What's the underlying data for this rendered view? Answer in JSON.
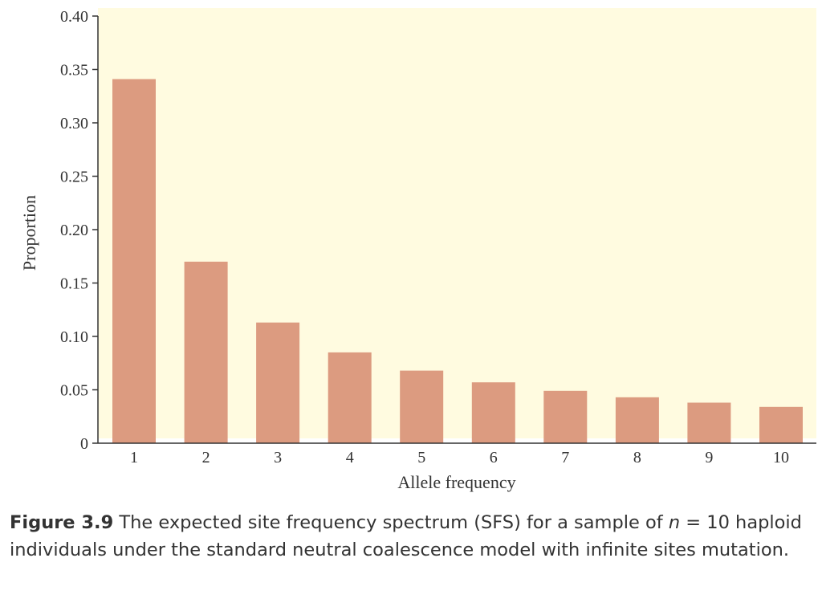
{
  "chart_data": {
    "type": "bar",
    "categories": [
      "1",
      "2",
      "3",
      "4",
      "5",
      "6",
      "7",
      "8",
      "9",
      "10"
    ],
    "values": [
      0.341,
      0.17,
      0.113,
      0.085,
      0.068,
      0.057,
      0.049,
      0.043,
      0.038,
      0.034
    ],
    "xlabel": "Allele frequency",
    "ylabel": "Proportion",
    "ylim": [
      0,
      0.4
    ],
    "yticks": [
      0,
      0.05,
      0.1,
      0.15,
      0.2,
      0.25,
      0.3,
      0.35,
      0.4
    ],
    "ytick_labels": [
      "0",
      "0.05",
      "0.10",
      "0.15",
      "0.20",
      "0.25",
      "0.30",
      "0.35",
      "0.40"
    ],
    "grid": false,
    "legend": "none",
    "colors": {
      "bar": "#dc9b80",
      "plot_background": "#fffbe0",
      "axis": "#333333"
    }
  },
  "caption": {
    "figure_label": "Figure 3.9",
    "text_before_n": "The expected site frequency spectrum (SFS) for a sample of",
    "n_symbol": "n",
    "text_after_n": "= 10 haploid individuals under the standard neutral coalescence model with infinite sites mutation."
  }
}
